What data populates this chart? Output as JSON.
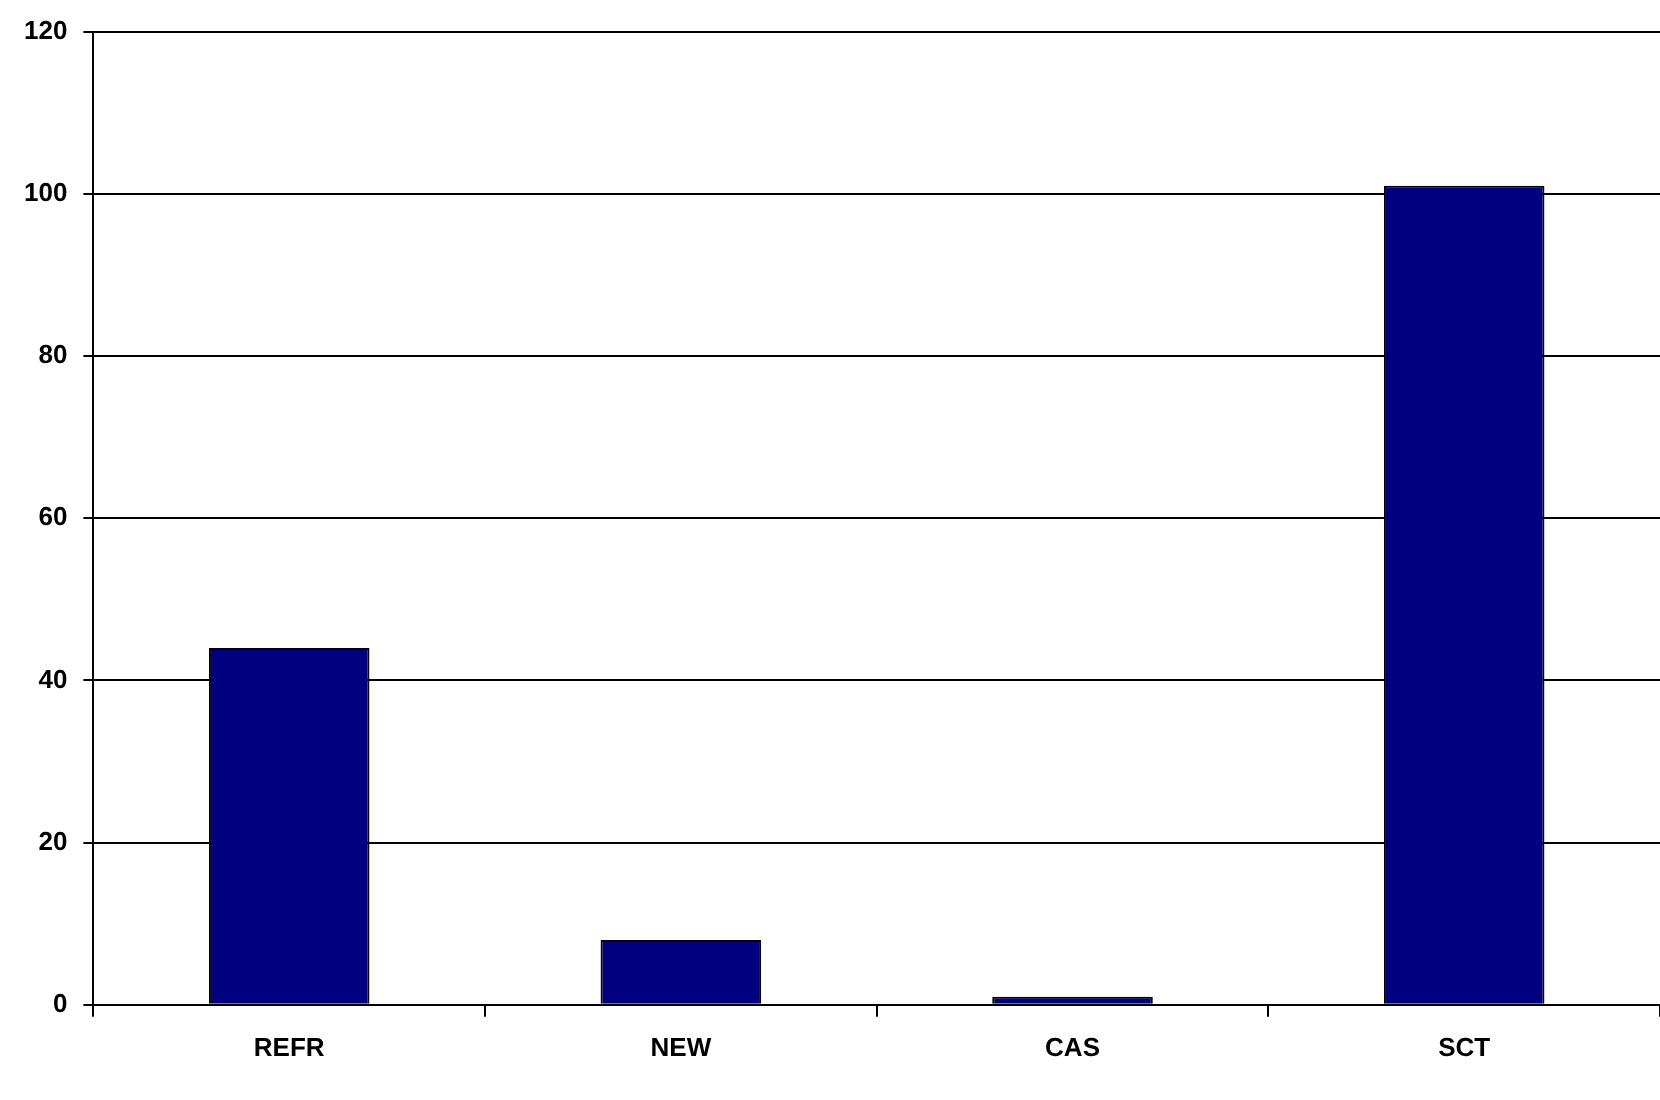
{
  "chart_data": {
    "type": "bar",
    "categories": [
      "REFR",
      "NEW",
      "CAS",
      "SCT"
    ],
    "values": [
      44,
      8,
      1,
      101
    ],
    "color": "#000080",
    "ylim": [
      0,
      120
    ],
    "yticks": [
      0,
      20,
      40,
      60,
      80,
      100,
      120
    ],
    "grid": "y",
    "legend": false
  }
}
